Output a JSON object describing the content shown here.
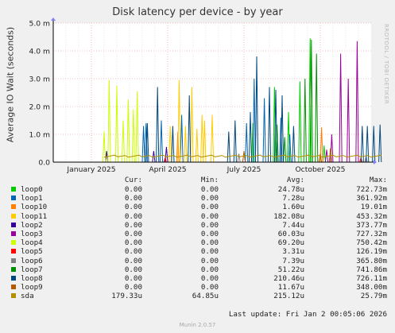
{
  "chart_data": {
    "type": "line",
    "title": "Disk latency per device - by year",
    "ylabel": "Average IO Wait (seconds)",
    "ylim": [
      0,
      5.0
    ],
    "yticks": [
      {
        "v": 0.0,
        "label": "0.0"
      },
      {
        "v": 1.0,
        "label": "1.0 m"
      },
      {
        "v": 2.0,
        "label": "2.0 m"
      },
      {
        "v": 3.0,
        "label": "3.0 m"
      },
      {
        "v": 4.0,
        "label": "4.0 m"
      },
      {
        "v": 5.0,
        "label": "5.0 m"
      }
    ],
    "xlim": [
      0,
      12.5
    ],
    "xticks": [
      {
        "v": 1.5,
        "label": "January 2025"
      },
      {
        "v": 4.5,
        "label": "April 2025"
      },
      {
        "v": 7.5,
        "label": "July 2025"
      },
      {
        "v": 10.5,
        "label": "October 2025"
      }
    ],
    "grid": true,
    "series": [
      {
        "name": "loop0",
        "color": "#00cc00",
        "peaks": [
          [
            7.85,
            1.4
          ],
          [
            8.7,
            2.7
          ],
          [
            9.25,
            1.8
          ],
          [
            9.7,
            2.9
          ],
          [
            10.1,
            4.45
          ],
          [
            10.65,
            0.6
          ]
        ]
      },
      {
        "name": "loop1",
        "color": "#0066b3",
        "peaks": [
          [
            3.55,
            1.3
          ],
          [
            3.65,
            1.4
          ],
          [
            4.25,
            1.5
          ],
          [
            5.05,
            1.7
          ],
          [
            7.6,
            1.4
          ],
          [
            7.9,
            3.0
          ],
          [
            8.3,
            2.3
          ],
          [
            8.95,
            1.6
          ],
          [
            9.3,
            1.0
          ]
        ]
      },
      {
        "name": "loop10",
        "color": "#ff8000",
        "peaks": [
          [
            10.55,
            1.25
          ],
          [
            4.9,
            1.1
          ]
        ]
      },
      {
        "name": "loop11",
        "color": "#ffcc00",
        "peaks": [
          [
            4.6,
            1.3
          ],
          [
            4.95,
            2.95
          ],
          [
            5.2,
            1.3
          ],
          [
            5.45,
            2.7
          ],
          [
            5.65,
            1.2
          ],
          [
            5.85,
            1.7
          ],
          [
            5.95,
            1.5
          ],
          [
            6.25,
            1.7
          ]
        ]
      },
      {
        "name": "loop2",
        "color": "#330099",
        "peaks": [
          [
            2.1,
            0.4
          ],
          [
            3.95,
            0.4
          ],
          [
            4.45,
            0.55
          ]
        ]
      },
      {
        "name": "loop3",
        "color": "#990099",
        "peaks": [
          [
            10.95,
            1.0
          ],
          [
            11.3,
            3.9
          ],
          [
            11.6,
            3.0
          ],
          [
            11.95,
            4.35
          ],
          [
            10.75,
            0.45
          ]
        ]
      },
      {
        "name": "loop4",
        "color": "#ccff00",
        "peaks": [
          [
            2.0,
            1.1
          ],
          [
            2.2,
            2.95
          ],
          [
            2.5,
            2.75
          ],
          [
            2.75,
            1.5
          ],
          [
            2.95,
            2.25
          ],
          [
            3.3,
            2.55
          ],
          [
            3.15,
            1.9
          ]
        ]
      },
      {
        "name": "loop5",
        "color": "#ff0000",
        "peaks": [
          [
            4.4,
            0.15
          ],
          [
            12.1,
            0.15
          ]
        ]
      },
      {
        "name": "loop6",
        "color": "#808080",
        "peaks": [
          [
            7.3,
            0.3
          ],
          [
            12.3,
            0.2
          ]
        ]
      },
      {
        "name": "loop7",
        "color": "#008f00",
        "peaks": [
          [
            8.8,
            1.35
          ],
          [
            9.9,
            3.0
          ],
          [
            10.15,
            4.4
          ],
          [
            10.35,
            3.9
          ],
          [
            9.1,
            0.9
          ]
        ]
      },
      {
        "name": "loop8",
        "color": "#00487d",
        "peaks": [
          [
            3.7,
            1.4
          ],
          [
            4.1,
            2.7
          ],
          [
            4.7,
            1.3
          ],
          [
            5.35,
            2.4
          ],
          [
            6.9,
            1.1
          ],
          [
            7.15,
            1.5
          ],
          [
            7.75,
            1.8
          ],
          [
            8.0,
            3.8
          ],
          [
            8.5,
            2.7
          ],
          [
            8.75,
            2.6
          ],
          [
            9.0,
            2.4
          ],
          [
            9.45,
            1.3
          ],
          [
            12.35,
            1.3
          ],
          [
            12.6,
            1.3
          ],
          [
            12.85,
            1.35
          ],
          [
            12.15,
            1.3
          ]
        ]
      },
      {
        "name": "loop9",
        "color": "#b35a00",
        "peaks": [
          [
            7.5,
            0.4
          ],
          [
            10.5,
            0.3
          ],
          [
            10.9,
            0.5
          ]
        ]
      },
      {
        "name": "sda",
        "color": "#b38f00",
        "baseline": 0.215,
        "baseline_range": [
          2.0,
          12.9
        ]
      }
    ]
  },
  "legend": {
    "headers": {
      "cur": "Cur:",
      "min": "Min:",
      "avg": "Avg:",
      "max": "Max:"
    },
    "rows": [
      {
        "name": "loop0",
        "color": "#00cc00",
        "cur": "0.00",
        "min": "0.00",
        "avg": "24.78u",
        "max": "722.73m"
      },
      {
        "name": "loop1",
        "color": "#0066b3",
        "cur": "0.00",
        "min": "0.00",
        "avg": "7.28u",
        "max": "361.92m"
      },
      {
        "name": "loop10",
        "color": "#ff8000",
        "cur": "0.00",
        "min": "0.00",
        "avg": "1.60u",
        "max": "19.01m"
      },
      {
        "name": "loop11",
        "color": "#ffcc00",
        "cur": "0.00",
        "min": "0.00",
        "avg": "182.08u",
        "max": "453.32m"
      },
      {
        "name": "loop2",
        "color": "#330099",
        "cur": "0.00",
        "min": "0.00",
        "avg": "7.44u",
        "max": "373.77m"
      },
      {
        "name": "loop3",
        "color": "#990099",
        "cur": "0.00",
        "min": "0.00",
        "avg": "60.03u",
        "max": "727.32m"
      },
      {
        "name": "loop4",
        "color": "#ccff00",
        "cur": "0.00",
        "min": "0.00",
        "avg": "69.20u",
        "max": "750.42m"
      },
      {
        "name": "loop5",
        "color": "#ff0000",
        "cur": "0.00",
        "min": "0.00",
        "avg": "3.31u",
        "max": "126.19m"
      },
      {
        "name": "loop6",
        "color": "#808080",
        "cur": "0.00",
        "min": "0.00",
        "avg": "7.39u",
        "max": "365.80m"
      },
      {
        "name": "loop7",
        "color": "#008f00",
        "cur": "0.00",
        "min": "0.00",
        "avg": "51.22u",
        "max": "741.86m"
      },
      {
        "name": "loop8",
        "color": "#00487d",
        "cur": "0.00",
        "min": "0.00",
        "avg": "210.46u",
        "max": "726.11m"
      },
      {
        "name": "loop9",
        "color": "#b35a00",
        "cur": "0.00",
        "min": "0.00",
        "avg": "11.67u",
        "max": "348.00m"
      },
      {
        "name": "sda",
        "color": "#b38f00",
        "cur": "179.33u",
        "min": "64.85u",
        "avg": "215.12u",
        "max": "25.79m"
      }
    ]
  },
  "last_update": "Last update: Fri Jan  2 00:05:06 2026",
  "side_text": "RRDTOOL / TOBI OETIKER",
  "footer": "Munin 2.0.57"
}
